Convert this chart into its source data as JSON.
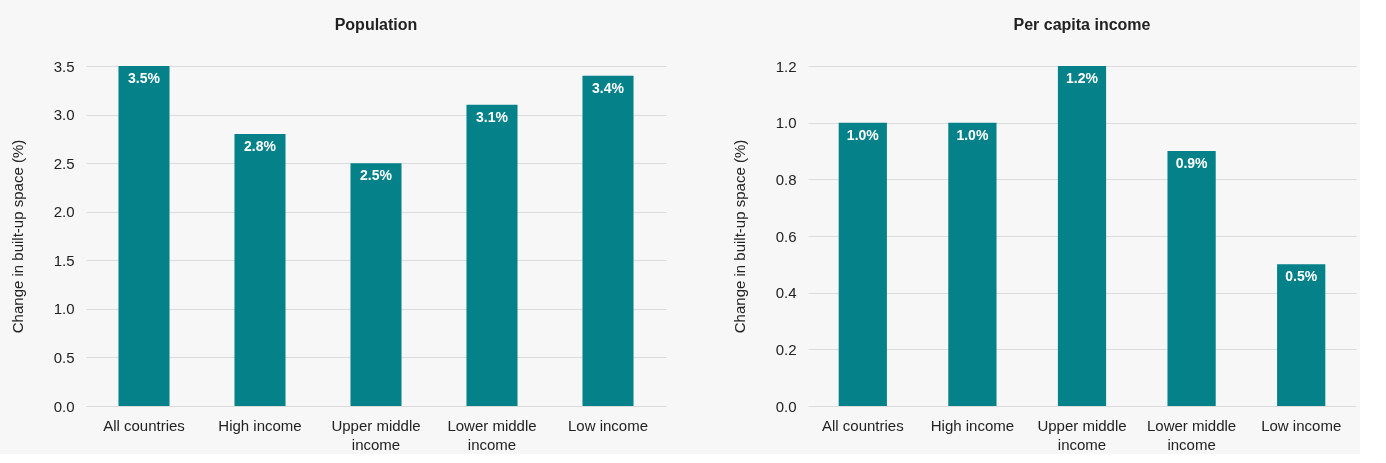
{
  "chart_data": [
    {
      "type": "bar",
      "title": "Population",
      "ylabel": "Change in built-up space (%)",
      "categories": [
        "All countries",
        "High income",
        "Upper middle income",
        "Lower middle income",
        "Low income"
      ],
      "values": [
        3.5,
        2.8,
        2.5,
        3.1,
        3.4
      ],
      "value_labels": [
        "3.5%",
        "2.8%",
        "2.5%",
        "3.1%",
        "3.4%"
      ],
      "color": "#05818a",
      "ylim": [
        0,
        3.5
      ],
      "yticks": [
        {
          "value": 0,
          "label": "0.0"
        },
        0.5,
        {
          "value": 1,
          "label": "1.0"
        },
        1.5,
        {
          "value": 2,
          "label": "2.0"
        },
        2.5,
        {
          "value": 3,
          "label": "3.0"
        },
        3.5
      ],
      "grid": "y"
    },
    {
      "type": "bar",
      "title": "Per capita income",
      "ylabel": "Change in built-up space (%)",
      "categories": [
        "All countries",
        "High income",
        "Upper middle income",
        "Lower middle income",
        "Low income"
      ],
      "values": [
        1.0,
        1.0,
        1.2,
        0.9,
        0.5
      ],
      "value_labels": [
        "1.0%",
        "1.0%",
        "1.2%",
        "0.9%",
        "0.5%"
      ],
      "color": "#05818a",
      "ylim": [
        0,
        1.2
      ],
      "yticks": [
        {
          "value": 0,
          "label": "0.0"
        },
        0.2,
        0.4,
        0.6,
        0.8,
        {
          "value": 1,
          "label": "1.0"
        },
        1.2
      ],
      "grid": "y"
    }
  ]
}
